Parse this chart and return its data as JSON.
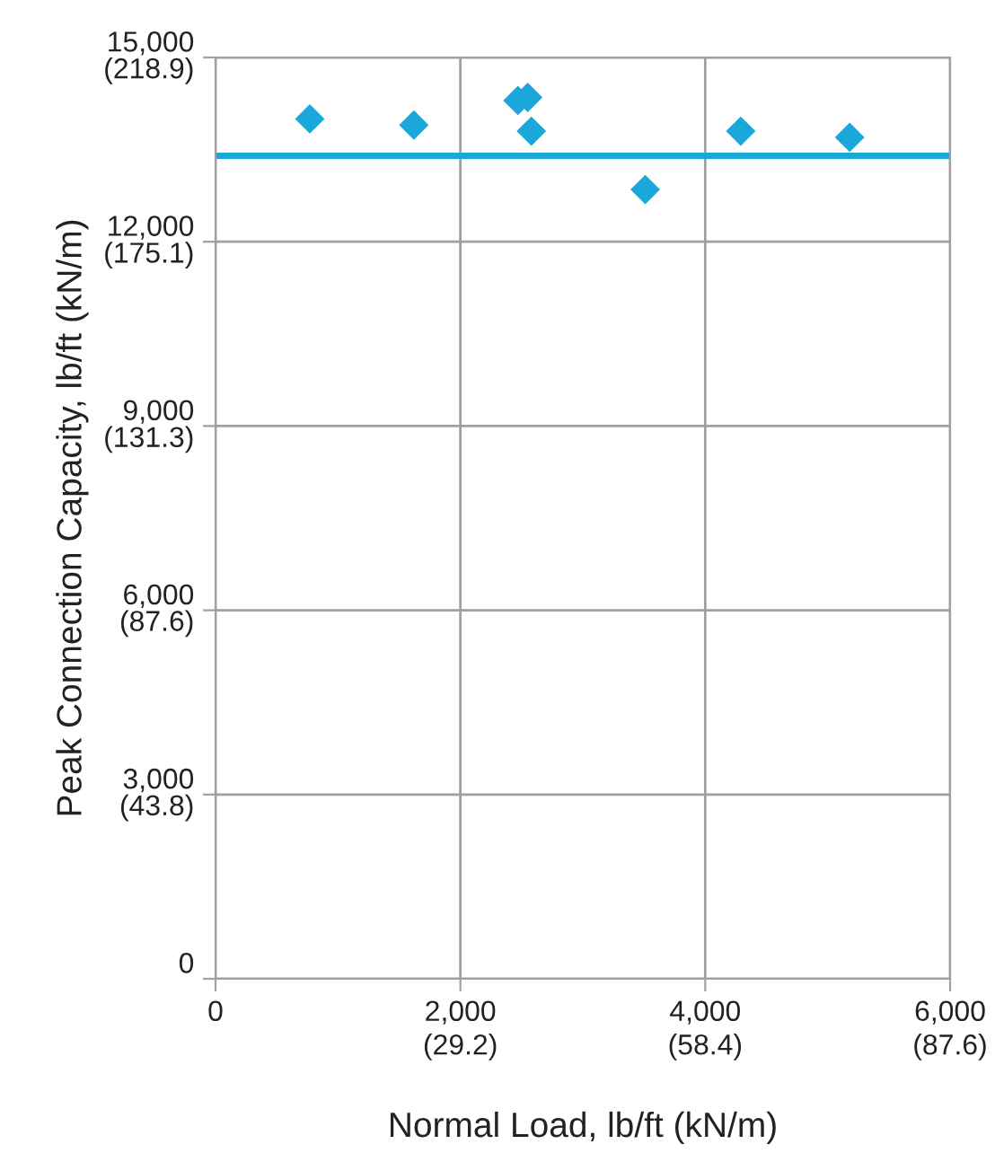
{
  "chart_data": {
    "type": "scatter",
    "xlabel": "Normal Load, lb/ft (kN/m)",
    "y2label": "Peak Connection Capacity, lb/ft (kN/m)",
    "x": [
      770,
      1620,
      2470,
      2550,
      2580,
      3510,
      4290,
      5180
    ],
    "series": [
      {
        "color": "#1aa7d9",
        "values": [
          14000,
          13900,
          14300,
          14350,
          13800,
          12850,
          13800,
          13700
        ]
      }
    ],
    "marker": "diamond",
    "ref_lines": [
      {
        "axis": "y",
        "value": 13400,
        "color": "#1aa7d9",
        "line_style": "solid"
      }
    ],
    "xlim": [
      0,
      6000
    ],
    "ylim": [
      0,
      15000
    ],
    "xticks": [
      0,
      {
        "value": 2000,
        "label": "2,000"
      },
      {
        "value": 4000,
        "label": "4,000"
      },
      {
        "value": 6000,
        "label": "6,000"
      }
    ],
    "yticks": [
      0,
      {
        "value": 3000,
        "label": "3,000"
      },
      {
        "value": 6000,
        "label": "6,000"
      },
      {
        "value": 9000,
        "label": "9,000"
      },
      {
        "value": 12000,
        "label": "12,000"
      },
      {
        "value": 15000,
        "label": "15,000"
      }
    ],
    "x2lim": [
      0,
      87.6
    ],
    "x2ticks": [
      {
        "value": 29.2,
        "label": "(29.2)"
      },
      {
        "value": 58.4,
        "label": "(58.4)"
      },
      {
        "value": 87.6,
        "label": "(87.6)"
      }
    ],
    "y2lim": [
      0,
      218.9
    ],
    "y2ticks": [
      {
        "value": 43.8,
        "label": "(43.8)"
      },
      {
        "value": 87.6,
        "label": "(87.6)"
      },
      {
        "value": 131.3,
        "label": "(131.3)"
      },
      {
        "value": 175.1,
        "label": "(175.1)"
      },
      {
        "value": 218.9,
        "label": "(218.9)"
      }
    ],
    "grid": true
  }
}
